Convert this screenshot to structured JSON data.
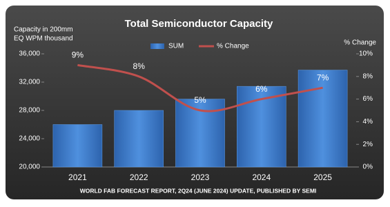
{
  "chart_data": {
    "type": "bar-line",
    "title": "Total Semiconductor Capacity",
    "ylabel": [
      "Capacity in 200mm",
      "EQ WPM thousand"
    ],
    "y2label": "% Change",
    "source": "WORLD FAB FORECAST REPORT, 2Q24 (JUNE 2024) UPDATE, PUBLISHED BY SEMI",
    "categories": [
      "2021",
      "2022",
      "2023",
      "2024",
      "2025"
    ],
    "series": [
      {
        "name": "SUM",
        "color": "#3f7fd0",
        "values": [
          26000,
          28000,
          29600,
          31400,
          33700
        ]
      },
      {
        "name": "% Change",
        "color": "#c0504d",
        "axis": "y2",
        "values": [
          9,
          8,
          5,
          6,
          7
        ],
        "value_labels": [
          "9%",
          "8%",
          "5%",
          "6%",
          "7%"
        ]
      }
    ],
    "ylim": [
      20000,
      36000
    ],
    "yticks": [
      {
        "value": 20000,
        "label": "20,000"
      },
      {
        "value": 24000,
        "label": "24,000"
      },
      {
        "value": 28000,
        "label": "28,000"
      },
      {
        "value": 32000,
        "label": "32,000"
      },
      {
        "value": 36000,
        "label": "36,000"
      }
    ],
    "y2lim": [
      0,
      10
    ],
    "y2ticks": [
      {
        "value": 0,
        "label": "0%"
      },
      {
        "value": 2,
        "label": "2%"
      },
      {
        "value": 4,
        "label": "4%"
      },
      {
        "value": 6,
        "label": "6%"
      },
      {
        "value": 8,
        "label": "8%"
      },
      {
        "value": 10,
        "label": "10%"
      }
    ],
    "legend": "top",
    "grid": false
  }
}
